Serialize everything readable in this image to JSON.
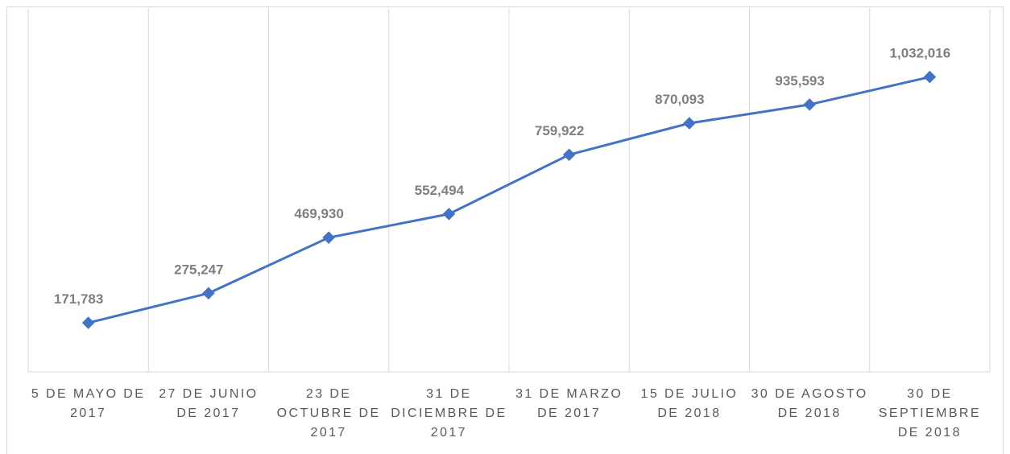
{
  "chart_data": {
    "type": "line",
    "categories": [
      "5 DE MAYO DE 2017",
      "27 DE JUNIO DE 2017",
      "23 DE OCTUBRE DE 2017",
      "31 DE DICIEMBRE DE 2017",
      "31 DE MARZO DE 2017",
      "15 DE JULIO DE 2018",
      "30 DE AGOSTO DE 2018",
      "30 DE SEPTIEMBRE DE 2018"
    ],
    "series": [
      {
        "color": "#4472c4",
        "values": [
          171783,
          275247,
          469930,
          552494,
          759922,
          870093,
          935593,
          1032016
        ],
        "value_labels": [
          "171,783",
          "275,247",
          "469,930",
          "552,494",
          "759,922",
          "870,093",
          "935,593",
          "1,032,016"
        ]
      }
    ],
    "ylim": [
      0,
      1200000
    ],
    "grid": true
  }
}
